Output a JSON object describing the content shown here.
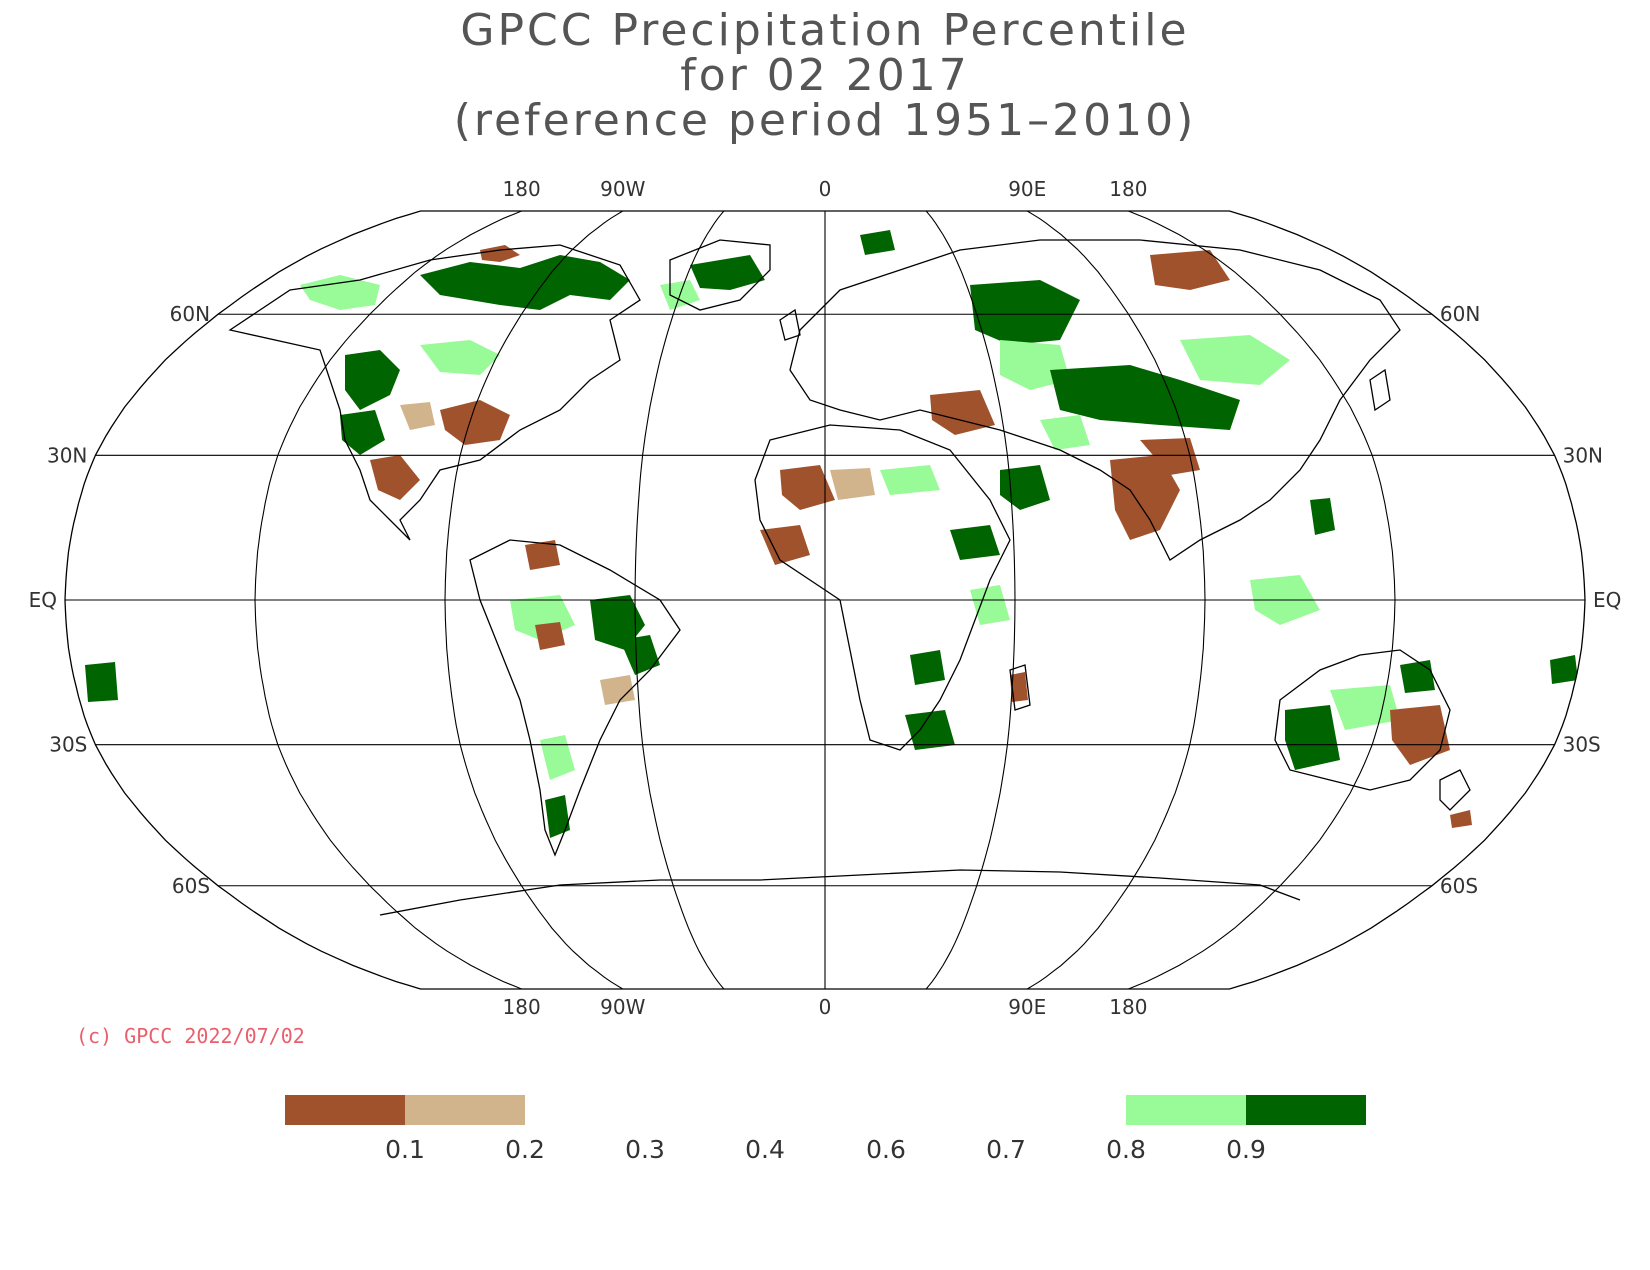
{
  "title": {
    "line1": "GPCC Precipitation Percentile",
    "line2": "for 02 2017",
    "line3": "(reference period 1951–2010)"
  },
  "map": {
    "projection": "Robinson",
    "longitude_labels": [
      "180",
      "90W",
      "0",
      "90E",
      "180"
    ],
    "latitude_labels": [
      "60N",
      "30N",
      "EQ",
      "30S",
      "60S"
    ],
    "meridians_deg": [
      -180,
      -135,
      -90,
      -45,
      0,
      45,
      90,
      135,
      180
    ],
    "parallels_deg": [
      60,
      30,
      0,
      -30,
      -60
    ],
    "colors": {
      "below_0_1": "#a0522d",
      "0_1_to_0_2": "#d2b48c",
      "0_8_to_0_9": "#98fb98",
      "above_0_9": "#006400",
      "land": "#ffffff",
      "coastline": "#000000",
      "grid": "#000000"
    }
  },
  "copyright": "(c) GPCC 2022/07/02",
  "legend": {
    "labels": [
      "0.1",
      "0.2",
      "0.3",
      "0.4",
      "0.6",
      "0.7",
      "0.8",
      "0.9"
    ],
    "swatches": [
      {
        "range": "< 0.1",
        "color": "#a0522d"
      },
      {
        "range": "0.1 – 0.2",
        "color": "#d2b48c"
      },
      {
        "range": "0.8 – 0.9",
        "color": "#98fb98"
      },
      {
        "range": "> 0.9",
        "color": "#006400"
      }
    ]
  }
}
